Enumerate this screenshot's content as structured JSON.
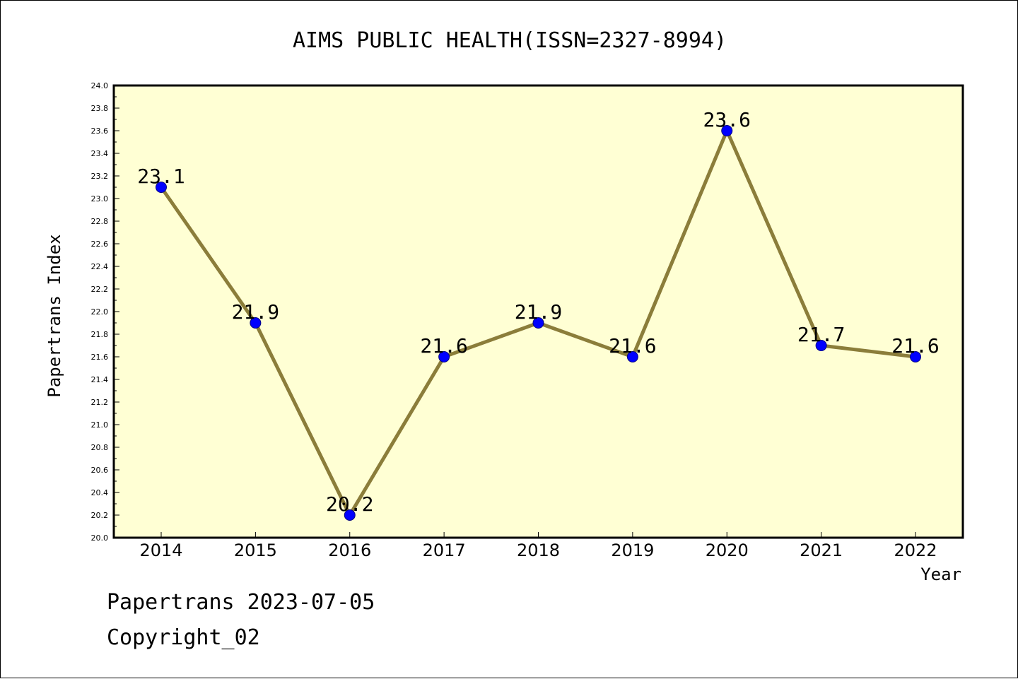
{
  "title": "AIMS PUBLIC HEALTH(ISSN=2327-8994)",
  "footer": {
    "line1": "Papertrans 2023-07-05",
    "line2": "Copyright_02"
  },
  "colors": {
    "plot_background": "#ffffd4",
    "line": "#8b7d3a",
    "marker": "#0000ff",
    "marker_edge": "#000080",
    "axis": "#000000"
  },
  "chart_data": {
    "type": "line",
    "title": "AIMS PUBLIC HEALTH(ISSN=2327-8994)",
    "xlabel": "Year",
    "ylabel": "Papertrans Index",
    "categories": [
      "2014",
      "2015",
      "2016",
      "2017",
      "2018",
      "2019",
      "2020",
      "2021",
      "2022"
    ],
    "series": [
      {
        "values": [
          23.1,
          21.9,
          20.2,
          21.6,
          21.9,
          21.6,
          23.6,
          21.7,
          21.6
        ],
        "labels": [
          "23.1",
          "21.9",
          "20.2",
          "21.6",
          "21.9",
          "21.6",
          "23.6",
          "21.7",
          "21.6"
        ]
      }
    ],
    "ylim": [
      20.0,
      24.0
    ],
    "yticks": [
      "20.0",
      "20.2",
      "20.4",
      "20.6",
      "20.8",
      "21.0",
      "21.2",
      "21.4",
      "21.6",
      "21.8",
      "22.0",
      "22.2",
      "22.4",
      "22.6",
      "22.8",
      "23.0",
      "23.2",
      "23.4",
      "23.6",
      "23.8",
      "24.0"
    ],
    "grid": false,
    "legend": "none",
    "marker": "circle"
  }
}
